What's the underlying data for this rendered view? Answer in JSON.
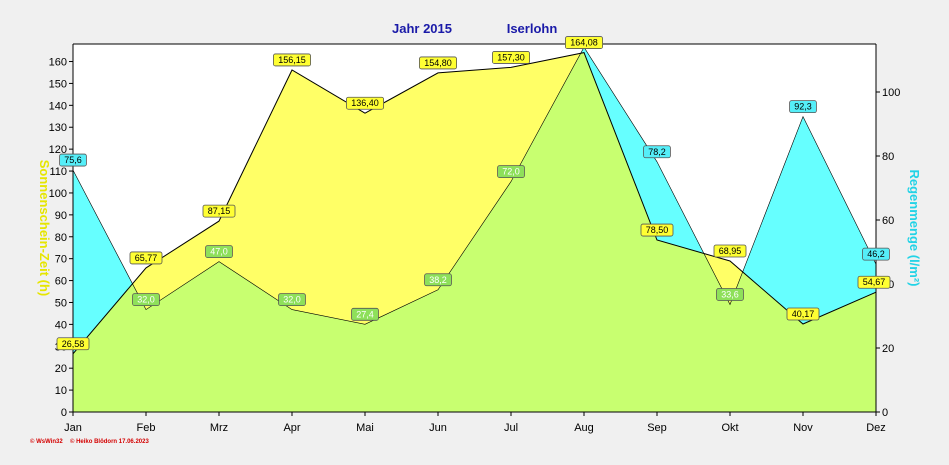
{
  "chart_data": {
    "type": "area",
    "title": "Jahr  2015",
    "location": "Iserlohn",
    "ylabel_left": "Sonnenschein-Zeit  (h)",
    "ylabel_right": "Regenmenge  (l/m²)",
    "categories": [
      "Jan",
      "Feb",
      "Mrz",
      "Apr",
      "Mai",
      "Jun",
      "Jul",
      "Aug",
      "Sep",
      "Okt",
      "Nov",
      "Dez"
    ],
    "ylim_left": [
      0,
      168
    ],
    "ylim_right": [
      0,
      115
    ],
    "yticks_left": [
      "0",
      "10",
      "20",
      "30",
      "40",
      "50",
      "60",
      "70",
      "80",
      "90",
      "100",
      "110",
      "120",
      "130",
      "140",
      "150",
      "160"
    ],
    "yticks_right": [
      "0",
      "20",
      "40",
      "60",
      "80",
      "100"
    ],
    "grid": false,
    "series": [
      {
        "axis": "left",
        "color": "#ffff66",
        "values": [
          26.58,
          65.77,
          87.15,
          156.15,
          136.4,
          154.8,
          157.3,
          164.08,
          78.5,
          68.95,
          40.17,
          54.67
        ],
        "labels": [
          "26,58",
          "65,77",
          "87,15",
          "156,15",
          "136,40",
          "154,80",
          "157,30",
          "164,08",
          "78,50",
          "68,95",
          "40,17",
          "54,67"
        ]
      },
      {
        "axis": "right",
        "color": "#66ffff",
        "values": [
          75.6,
          32.0,
          47.0,
          32.0,
          27.4,
          38.2,
          72.0,
          114.0,
          78.2,
          33.6,
          92.3,
          46.2
        ],
        "labels": [
          "75,6",
          "32,0",
          "47,0",
          "32,0",
          "27,4",
          "38,2",
          "72,0",
          "",
          "78,2",
          "33,6",
          "92,3",
          "46,2"
        ]
      }
    ]
  },
  "footer": {
    "software": "© WsWin32",
    "author": "© Heiko Blödorn  17.06.2023"
  }
}
